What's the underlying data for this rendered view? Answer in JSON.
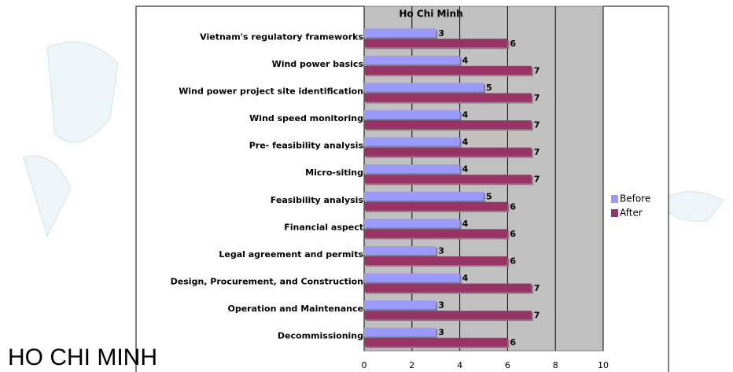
{
  "slide_title": "HO CHI MINH",
  "chart_data": {
    "type": "bar",
    "orientation": "horizontal",
    "title": "Ho Chi Minh",
    "categories": [
      "Vietnam's regulatory frameworks",
      "Wind power basics",
      "Wind power project site identification",
      "Wind speed monitoring",
      "Pre- feasibility analysis",
      "Micro-siting",
      "Feasibility analysis",
      "Financial aspect",
      "Legal agreement and permits",
      "Design, Procurement, and Construction",
      "Operation and Maintenance",
      "Decommissioning"
    ],
    "series": [
      {
        "name": "Before",
        "color": "#9999ff",
        "values": [
          3,
          4,
          5,
          4,
          4,
          4,
          5,
          4,
          3,
          4,
          3,
          3
        ]
      },
      {
        "name": "After",
        "color": "#993366",
        "values": [
          6,
          7,
          7,
          7,
          7,
          7,
          6,
          6,
          6,
          7,
          7,
          6
        ]
      }
    ],
    "xlim": [
      0,
      10
    ],
    "xticks": [
      0,
      2,
      4,
      6,
      8,
      10
    ],
    "grid": true,
    "legend": "right"
  }
}
